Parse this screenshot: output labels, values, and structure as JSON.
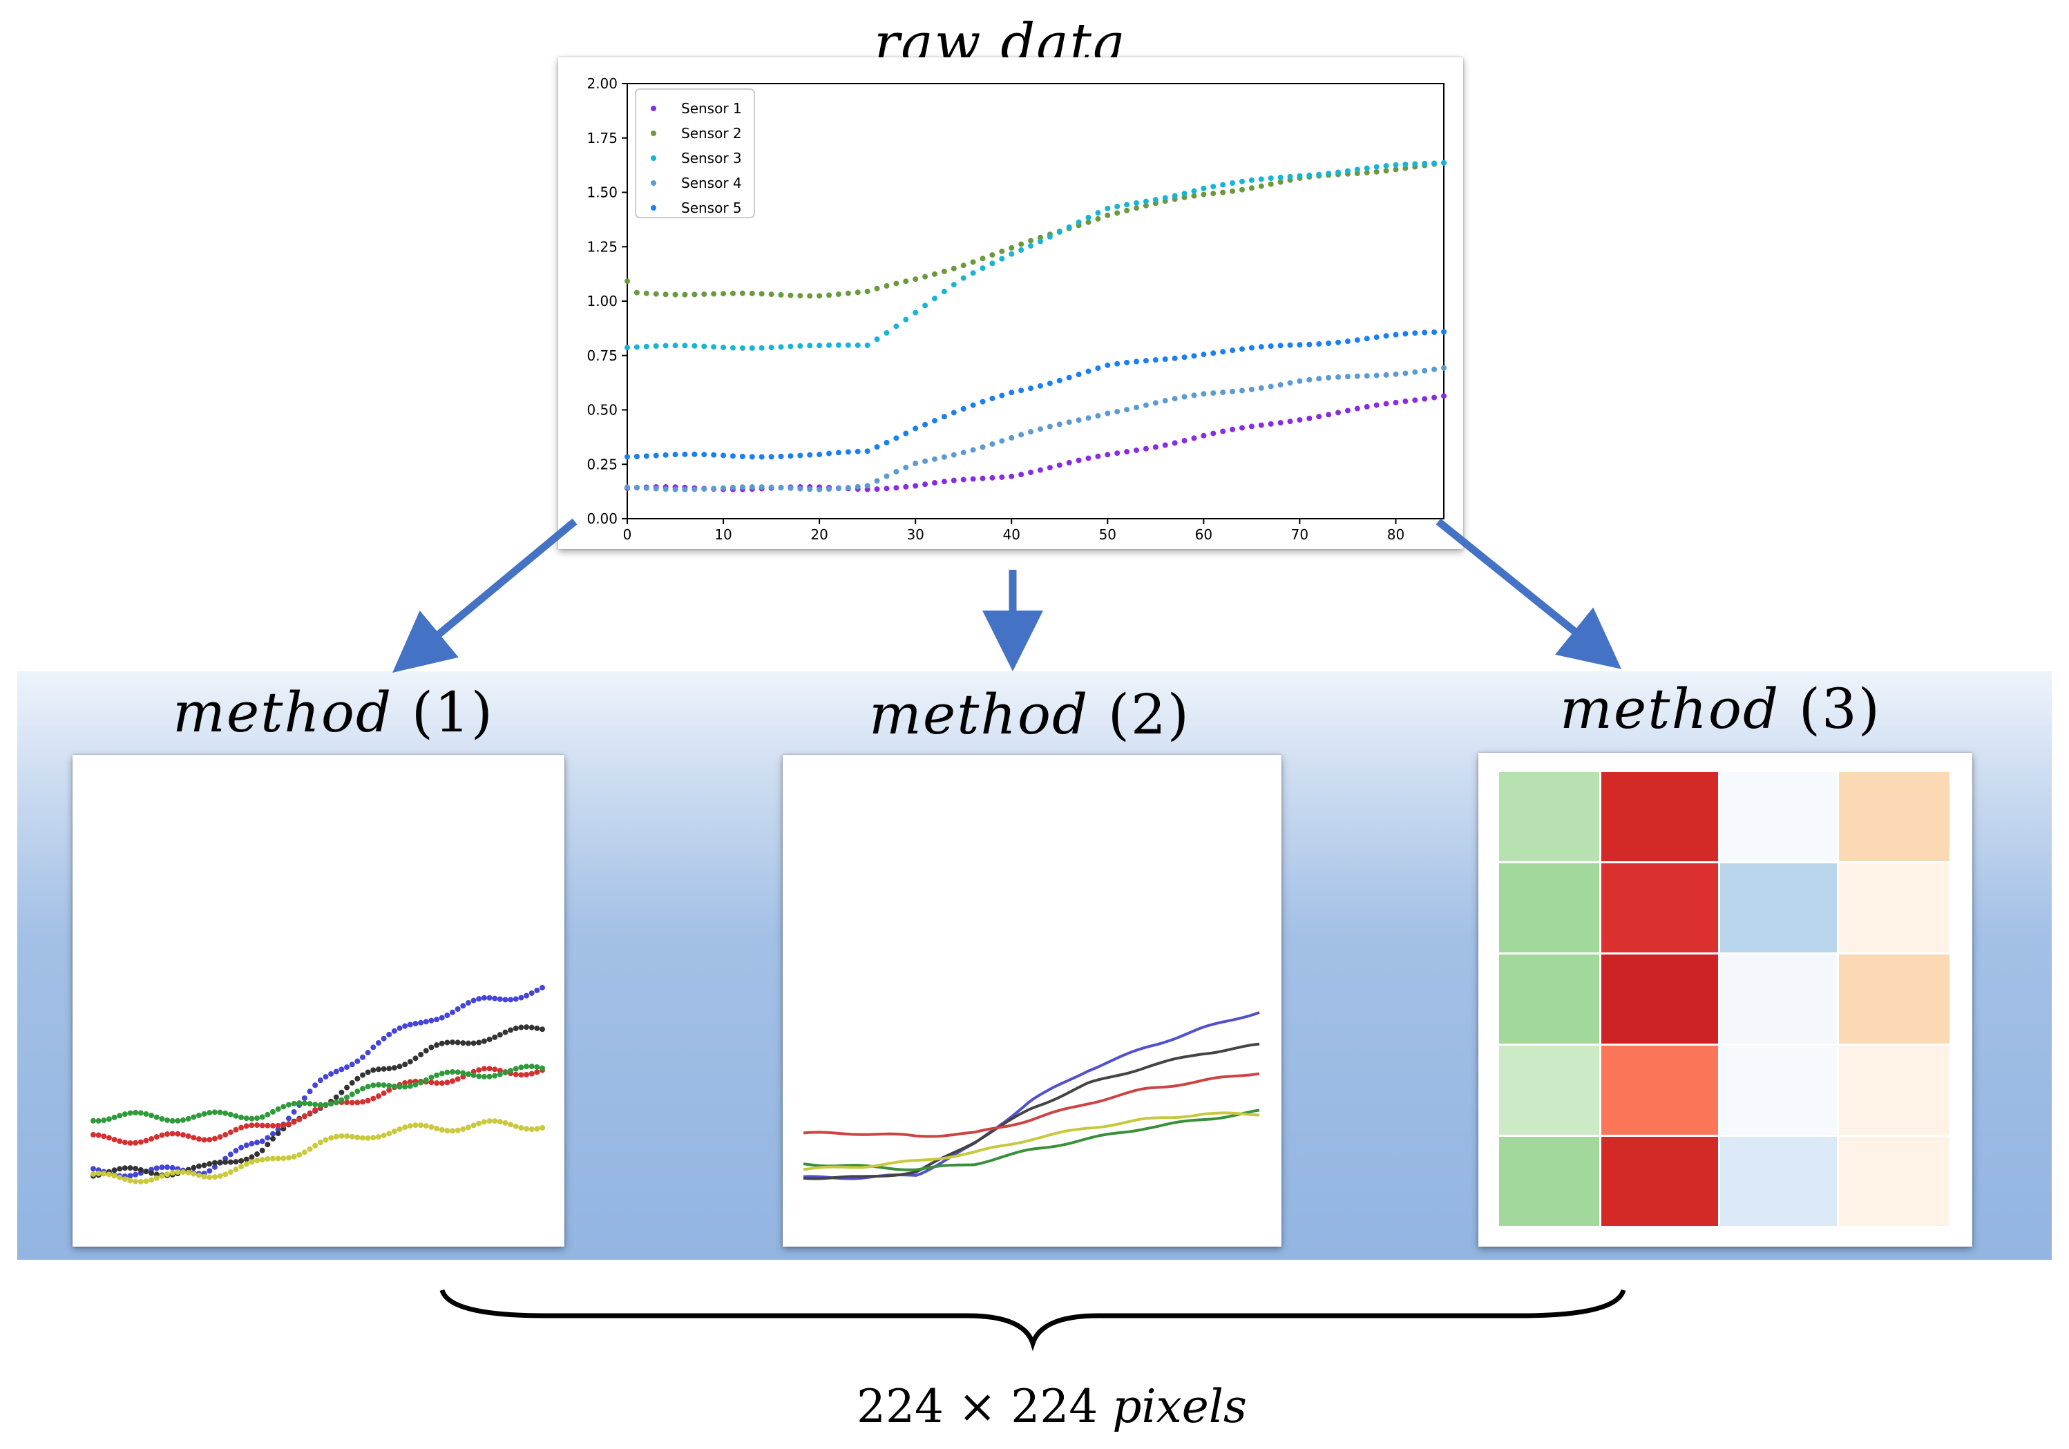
{
  "raw_title": "raw data",
  "methods": [
    {
      "label": "method",
      "num": "(1)"
    },
    {
      "label": "method",
      "num": "(2)"
    },
    {
      "label": "method",
      "num": "(3)"
    }
  ],
  "size_label": {
    "value": "224 × 224",
    "unit": "pixels"
  },
  "colors": {
    "arrow": "#4472c4",
    "band_top": "#eef3fb",
    "band_bottom": "#93b5e1"
  },
  "chart_data": [
    {
      "type": "scatter",
      "title": "raw data",
      "xlim": [
        0,
        85
      ],
      "ylim": [
        0,
        2.0
      ],
      "xticks": [
        0,
        10,
        20,
        30,
        40,
        50,
        60,
        70,
        80
      ],
      "yticks": [
        "0.00",
        "0.25",
        "0.50",
        "0.75",
        "1.00",
        "1.25",
        "1.50",
        "1.75",
        "2.00"
      ],
      "legend_position": "top-left",
      "grid": false,
      "series": [
        {
          "name": "Sensor 1",
          "color": "#8a2be2",
          "x": [
            0,
            10,
            20,
            25,
            30,
            40,
            50,
            60,
            70,
            80,
            85
          ],
          "y": [
            0.14,
            0.14,
            0.14,
            0.14,
            0.15,
            0.2,
            0.29,
            0.38,
            0.46,
            0.53,
            0.57
          ]
        },
        {
          "name": "Sensor 2",
          "color": "#6b9a3c",
          "x": [
            0,
            1,
            10,
            20,
            25,
            30,
            40,
            50,
            60,
            70,
            80,
            85
          ],
          "y": [
            1.09,
            1.04,
            1.03,
            1.03,
            1.04,
            1.1,
            1.24,
            1.4,
            1.49,
            1.56,
            1.61,
            1.63
          ]
        },
        {
          "name": "Sensor 3",
          "color": "#17b4d6",
          "x": [
            0,
            10,
            20,
            25,
            30,
            35,
            40,
            50,
            60,
            70,
            80,
            85
          ],
          "y": [
            0.79,
            0.79,
            0.79,
            0.8,
            0.95,
            1.1,
            1.22,
            1.42,
            1.52,
            1.58,
            1.62,
            1.64
          ]
        },
        {
          "name": "Sensor 4",
          "color": "#5c9bd1",
          "x": [
            0,
            10,
            20,
            25,
            30,
            40,
            50,
            60,
            70,
            80,
            85
          ],
          "y": [
            0.14,
            0.14,
            0.14,
            0.15,
            0.25,
            0.37,
            0.49,
            0.57,
            0.63,
            0.67,
            0.69
          ]
        },
        {
          "name": "Sensor 5",
          "color": "#1a7ff0",
          "x": [
            0,
            10,
            20,
            25,
            30,
            40,
            50,
            60,
            70,
            80,
            85
          ],
          "y": [
            0.29,
            0.29,
            0.29,
            0.31,
            0.42,
            0.58,
            0.7,
            0.76,
            0.8,
            0.84,
            0.86
          ]
        }
      ]
    },
    {
      "type": "scatter",
      "series": [
        {
          "color": "#4444d8",
          "y": [
            0.14,
            0.14,
            0.15,
            0.25,
            0.45,
            0.6,
            0.7,
            0.76,
            0.8
          ]
        },
        {
          "color": "#333333",
          "y": [
            0.14,
            0.14,
            0.15,
            0.22,
            0.38,
            0.5,
            0.58,
            0.63,
            0.66
          ]
        },
        {
          "color": "#d43030",
          "y": [
            0.26,
            0.26,
            0.27,
            0.3,
            0.36,
            0.42,
            0.47,
            0.5,
            0.51
          ]
        },
        {
          "color": "#2e9a3a",
          "y": [
            0.34,
            0.34,
            0.34,
            0.35,
            0.39,
            0.44,
            0.48,
            0.5,
            0.51
          ]
        },
        {
          "color": "#c9c93a",
          "y": [
            0.12,
            0.12,
            0.13,
            0.17,
            0.24,
            0.28,
            0.3,
            0.31,
            0.31
          ]
        }
      ]
    },
    {
      "type": "line",
      "series": [
        {
          "color": "#5050d0",
          "y": [
            0.12,
            0.12,
            0.13,
            0.24,
            0.4,
            0.51,
            0.59,
            0.66,
            0.72
          ]
        },
        {
          "color": "#444444",
          "y": [
            0.12,
            0.12,
            0.14,
            0.25,
            0.37,
            0.46,
            0.52,
            0.57,
            0.6
          ]
        },
        {
          "color": "#cc4444",
          "y": [
            0.28,
            0.28,
            0.27,
            0.28,
            0.33,
            0.39,
            0.44,
            0.47,
            0.5
          ]
        },
        {
          "color": "#3a8f3a",
          "y": [
            0.17,
            0.16,
            0.15,
            0.17,
            0.22,
            0.26,
            0.3,
            0.33,
            0.36
          ]
        },
        {
          "color": "#c8c840",
          "y": [
            0.15,
            0.16,
            0.18,
            0.21,
            0.26,
            0.3,
            0.33,
            0.35,
            0.35
          ]
        }
      ]
    },
    {
      "type": "heatmap",
      "rows": 5,
      "cols": 4,
      "cells": [
        [
          "#b7e1b0",
          "#d42a27",
          "#f6f9fd",
          "#fcd9b5"
        ],
        [
          "#a3d89c",
          "#dc3030",
          "#bad6ec",
          "#fef3e6"
        ],
        [
          "#a3d89c",
          "#ce2224",
          "#f4f8fd",
          "#fcd9b5"
        ],
        [
          "#cceac5",
          "#fb7559",
          "#f6f9fd",
          "#fef3e6"
        ],
        [
          "#a3d89c",
          "#d42a27",
          "#dce9f6",
          "#fef3e6"
        ]
      ]
    }
  ]
}
